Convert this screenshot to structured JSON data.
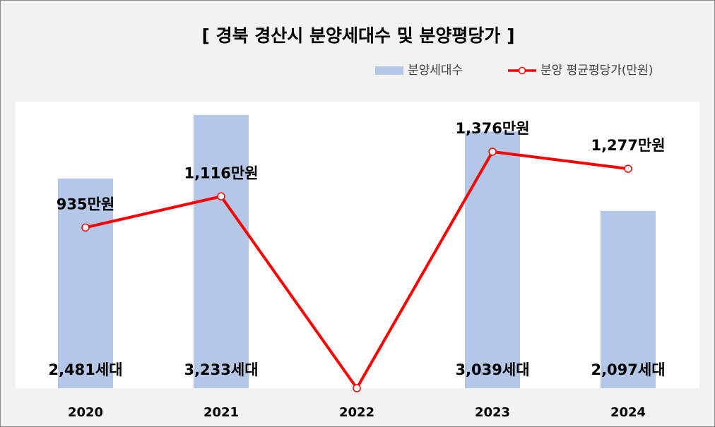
{
  "chart_data": {
    "type": "bar+line",
    "title": "[ 경북 경산시 분양세대수 및 분양평당가 ]",
    "categories": [
      "2020",
      "2021",
      "2022",
      "2023",
      "2024"
    ],
    "series": [
      {
        "name": "분양세대수",
        "type": "bar",
        "axis": "left",
        "values": [
          2481,
          3233,
          0,
          3039,
          2097
        ],
        "labels": [
          "2,481세대",
          "3,233세대",
          "",
          "3,039세대",
          "2,097세대"
        ],
        "color": "#b4c7e7"
      },
      {
        "name": "분양 평균평당가(만원)",
        "type": "line",
        "axis": "right",
        "values": [
          935,
          1116,
          0,
          1376,
          1277
        ],
        "labels": [
          "935만원",
          "1,116만원",
          "",
          "1,376만원",
          "1,277만원"
        ],
        "color": "#ff0000"
      }
    ],
    "y_left_range": [
      0,
      3500
    ],
    "y_right_range": [
      0,
      1600
    ],
    "legend_position": "top-right",
    "grid": false
  }
}
